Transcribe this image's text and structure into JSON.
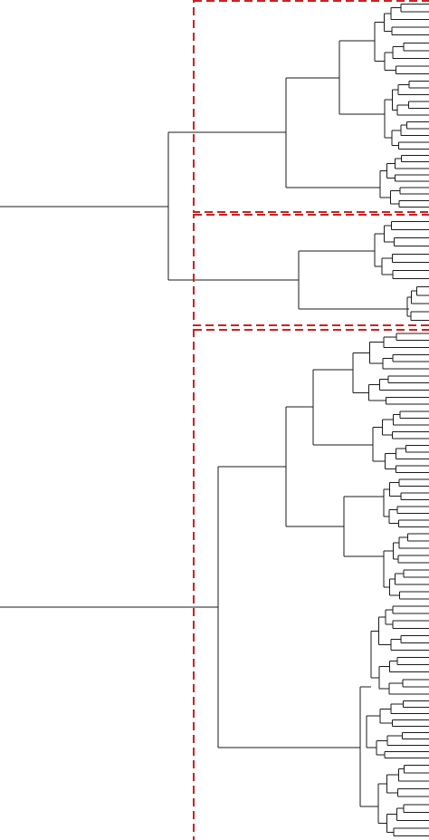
{
  "diagram": {
    "type": "dendrogram",
    "orientation": "horizontal",
    "box_color": "#cc2222",
    "clusters": [
      {
        "id": "cluster-1",
        "leaves": 30
      },
      {
        "id": "cluster-2",
        "leaves": 13
      },
      {
        "id": "cluster-3",
        "leaves": 72
      }
    ]
  }
}
